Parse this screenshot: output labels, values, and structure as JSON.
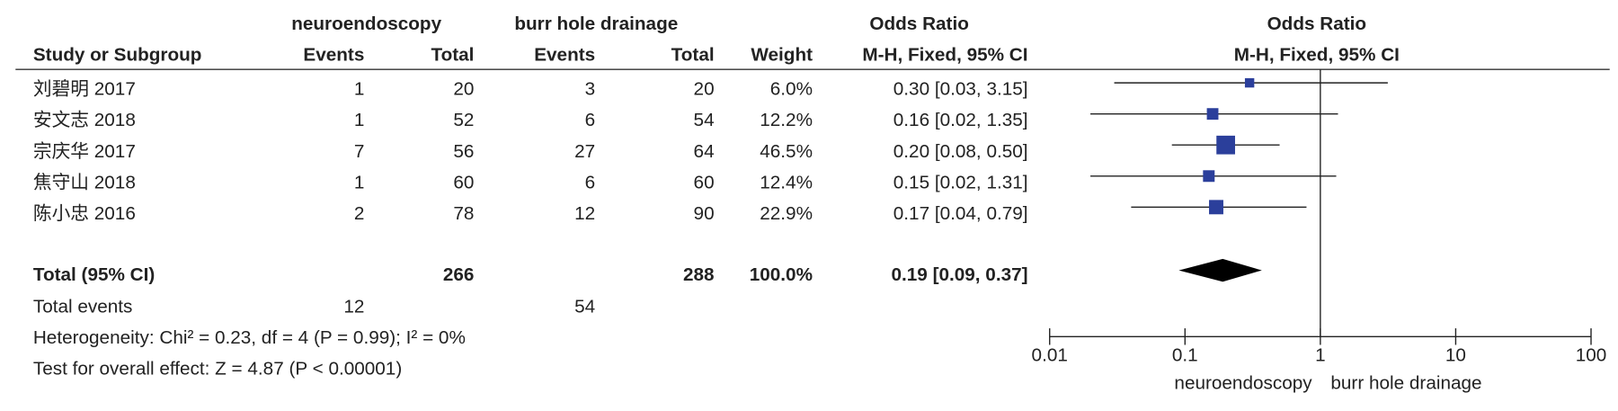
{
  "chart_data": {
    "type": "forest",
    "group_headers": [
      "neuroendoscopy",
      "burr hole drainage"
    ],
    "effect_header": "Odds Ratio",
    "columns": [
      "Study or Subgroup",
      "Events",
      "Total",
      "Events",
      "Total",
      "Weight",
      "M-H, Fixed, 95% CI",
      "M-H, Fixed, 95% CI"
    ],
    "studies": [
      {
        "name": "刘碧明 2017",
        "e1": 1,
        "n1": 20,
        "e2": 3,
        "n2": 20,
        "weight": 6.0,
        "weight_label": "6.0%",
        "ci_label": "0.30 [0.03, 3.15]",
        "or": 0.3,
        "lo": 0.03,
        "hi": 3.15
      },
      {
        "name": "安文志 2018",
        "e1": 1,
        "n1": 52,
        "e2": 6,
        "n2": 54,
        "weight": 12.2,
        "weight_label": "12.2%",
        "ci_label": "0.16 [0.02, 1.35]",
        "or": 0.16,
        "lo": 0.02,
        "hi": 1.35
      },
      {
        "name": "宗庆华 2017",
        "e1": 7,
        "n1": 56,
        "e2": 27,
        "n2": 64,
        "weight": 46.5,
        "weight_label": "46.5%",
        "ci_label": "0.20 [0.08, 0.50]",
        "or": 0.2,
        "lo": 0.08,
        "hi": 0.5
      },
      {
        "name": "焦守山 2018",
        "e1": 1,
        "n1": 60,
        "e2": 6,
        "n2": 60,
        "weight": 12.4,
        "weight_label": "12.4%",
        "ci_label": "0.15 [0.02, 1.31]",
        "or": 0.15,
        "lo": 0.02,
        "hi": 1.31
      },
      {
        "name": "陈小忠 2016",
        "e1": 2,
        "n1": 78,
        "e2": 12,
        "n2": 90,
        "weight": 22.9,
        "weight_label": "22.9%",
        "ci_label": "0.17 [0.04, 0.79]",
        "or": 0.17,
        "lo": 0.04,
        "hi": 0.79
      }
    ],
    "total": {
      "name": "Total (95% CI)",
      "n1": 266,
      "n2": 288,
      "weight": 100.0,
      "weight_label": "100.0%",
      "ci_label": "0.19 [0.09, 0.37]",
      "or": 0.19,
      "lo": 0.09,
      "hi": 0.37
    },
    "total_events": {
      "name": "Total events",
      "e1": 12,
      "e2": 54
    },
    "heterogeneity": "Heterogeneity: Chi² = 0.23, df = 4 (P = 0.99); I² = 0%",
    "overall_effect": "Test for overall effect: Z = 4.87 (P < 0.00001)",
    "x_scale": "log",
    "xlim": [
      0.01,
      100
    ],
    "xticks": [
      0.01,
      0.1,
      1,
      10,
      100
    ],
    "x_labels": [
      "neuroendoscopy",
      "burr hole drainage"
    ],
    "color": "#2b3f9b"
  }
}
